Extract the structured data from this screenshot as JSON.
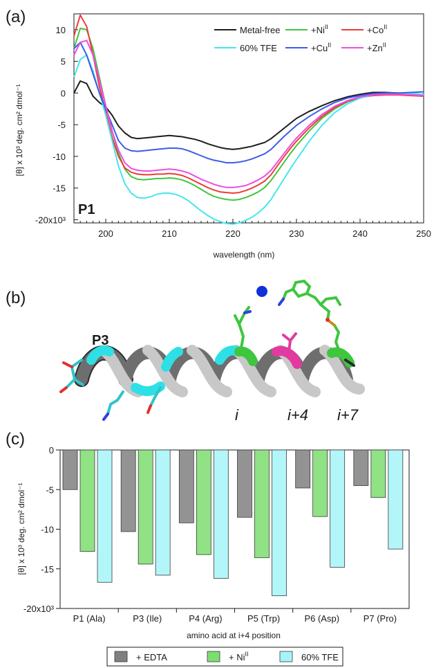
{
  "panels": {
    "a": "(a)",
    "b": "(b)",
    "c": "(c)"
  },
  "chart_data": [
    {
      "type": "line",
      "title": "",
      "panel_label": "P1",
      "xlabel": "wavelength (nm)",
      "ylabel": "[θ] x 10³ deg. cm² dmol⁻¹",
      "xlim": [
        195,
        250
      ],
      "ylim": [
        -20.5,
        12.5
      ],
      "x_ticks": [
        "200",
        "210",
        "220",
        "230",
        "240",
        "250"
      ],
      "y_ticks": [
        "10",
        "5",
        "0",
        "-5",
        "-10",
        "-15",
        "-20x10³"
      ],
      "legend_position": "top-right",
      "series": [
        {
          "name": "Metal-free",
          "color": "#1e1e1e",
          "x": [
            195,
            196,
            197,
            198,
            199,
            200,
            201,
            202,
            203,
            204,
            205,
            206,
            207,
            208,
            209,
            210,
            211,
            212,
            213,
            214,
            215,
            216,
            217,
            218,
            219,
            220,
            221,
            222,
            223,
            224,
            225,
            226,
            227,
            228,
            229,
            230,
            232,
            234,
            236,
            238,
            240,
            242,
            244,
            246,
            248,
            250
          ],
          "y": [
            0.0,
            1.9,
            1.5,
            -0.5,
            -1.5,
            -2.2,
            -3.5,
            -5.2,
            -6.3,
            -7.0,
            -7.2,
            -7.1,
            -7.0,
            -6.9,
            -6.8,
            -6.7,
            -6.8,
            -6.9,
            -7.1,
            -7.3,
            -7.6,
            -8.0,
            -8.3,
            -8.6,
            -8.8,
            -8.9,
            -8.8,
            -8.6,
            -8.4,
            -8.1,
            -7.8,
            -7.2,
            -6.4,
            -5.6,
            -4.8,
            -4.0,
            -2.9,
            -2.0,
            -1.2,
            -0.6,
            -0.2,
            0.1,
            0.1,
            0.0,
            -0.1,
            -0.2
          ]
        },
        {
          "name": "+Ni",
          "sup": "II",
          "color": "#3ec63e",
          "x": [
            195,
            196,
            197,
            198,
            199,
            200,
            201,
            202,
            203,
            204,
            205,
            206,
            207,
            208,
            209,
            210,
            211,
            212,
            213,
            214,
            215,
            216,
            217,
            218,
            219,
            220,
            221,
            222,
            223,
            224,
            225,
            226,
            227,
            228,
            229,
            230,
            232,
            234,
            236,
            238,
            240,
            242,
            244,
            246,
            248,
            250
          ],
          "y": [
            7.0,
            10.2,
            10.0,
            7.0,
            2.5,
            -2.0,
            -6.0,
            -9.5,
            -12.0,
            -13.2,
            -13.6,
            -13.7,
            -13.6,
            -13.5,
            -13.5,
            -13.4,
            -13.5,
            -13.7,
            -14.1,
            -14.6,
            -15.2,
            -15.8,
            -16.3,
            -16.6,
            -16.8,
            -16.9,
            -16.8,
            -16.5,
            -16.1,
            -15.6,
            -14.9,
            -13.8,
            -12.4,
            -11.0,
            -9.6,
            -8.3,
            -6.0,
            -4.0,
            -2.5,
            -1.4,
            -0.7,
            -0.3,
            -0.2,
            -0.2,
            -0.3,
            -0.3
          ]
        },
        {
          "name": "+Co",
          "sup": "II",
          "color": "#f03a3a",
          "x": [
            195,
            196,
            197,
            198,
            199,
            200,
            201,
            202,
            203,
            204,
            205,
            206,
            207,
            208,
            209,
            210,
            211,
            212,
            213,
            214,
            215,
            216,
            217,
            218,
            219,
            220,
            221,
            222,
            223,
            224,
            225,
            226,
            227,
            228,
            229,
            230,
            232,
            234,
            236,
            238,
            240,
            242,
            244,
            246,
            248,
            250
          ],
          "y": [
            9.0,
            12.3,
            10.5,
            6.0,
            1.0,
            -3.0,
            -7.0,
            -10.0,
            -11.8,
            -12.5,
            -12.8,
            -12.9,
            -12.9,
            -12.8,
            -12.8,
            -12.7,
            -12.8,
            -13.0,
            -13.4,
            -13.9,
            -14.4,
            -14.9,
            -15.3,
            -15.6,
            -15.7,
            -15.8,
            -15.7,
            -15.4,
            -15.0,
            -14.5,
            -13.9,
            -12.9,
            -11.5,
            -10.1,
            -8.8,
            -7.6,
            -5.5,
            -3.7,
            -2.3,
            -1.3,
            -0.7,
            -0.4,
            -0.3,
            -0.3,
            -0.4,
            -0.5
          ]
        },
        {
          "name": "60% TFE",
          "color": "#44e6ee",
          "x": [
            195,
            196,
            197,
            198,
            199,
            200,
            201,
            202,
            203,
            204,
            205,
            206,
            207,
            208,
            209,
            210,
            211,
            212,
            213,
            214,
            215,
            216,
            217,
            218,
            219,
            220,
            221,
            222,
            223,
            224,
            225,
            226,
            227,
            228,
            229,
            230,
            232,
            234,
            236,
            238,
            240,
            242,
            244,
            246,
            248,
            250
          ],
          "y": [
            2.5,
            5.3,
            6.0,
            3.5,
            0.0,
            -3.5,
            -7.5,
            -11.5,
            -14.3,
            -15.8,
            -16.5,
            -16.6,
            -16.4,
            -16.0,
            -15.8,
            -15.8,
            -16.0,
            -16.4,
            -17.0,
            -17.8,
            -18.6,
            -19.3,
            -19.9,
            -20.3,
            -20.6,
            -20.7,
            -20.5,
            -20.1,
            -19.6,
            -18.9,
            -18.0,
            -16.8,
            -15.2,
            -13.6,
            -12.0,
            -10.5,
            -7.6,
            -5.1,
            -3.1,
            -1.7,
            -0.8,
            -0.3,
            0.0,
            0.0,
            -0.1,
            -0.2
          ]
        },
        {
          "name": "+Cu",
          "sup": "II",
          "color": "#3c5ce8",
          "x": [
            195,
            196,
            197,
            198,
            199,
            200,
            201,
            202,
            203,
            204,
            205,
            206,
            207,
            208,
            209,
            210,
            211,
            212,
            213,
            214,
            215,
            216,
            217,
            218,
            219,
            220,
            221,
            222,
            223,
            224,
            225,
            226,
            227,
            228,
            229,
            230,
            232,
            234,
            236,
            238,
            240,
            242,
            244,
            246,
            248,
            250
          ],
          "y": [
            7.0,
            8.0,
            6.0,
            3.0,
            0.0,
            -2.5,
            -5.0,
            -7.5,
            -8.7,
            -9.1,
            -9.2,
            -9.1,
            -9.0,
            -8.9,
            -8.8,
            -8.7,
            -8.7,
            -8.8,
            -9.1,
            -9.5,
            -9.9,
            -10.3,
            -10.6,
            -10.8,
            -11.0,
            -11.0,
            -10.9,
            -10.7,
            -10.4,
            -10.0,
            -9.6,
            -8.9,
            -7.9,
            -6.9,
            -6.0,
            -5.1,
            -3.7,
            -2.5,
            -1.5,
            -0.8,
            -0.4,
            -0.1,
            0.0,
            0.0,
            0.1,
            0.2
          ]
        },
        {
          "name": "+Zn",
          "sup": "II",
          "color": "#ee4ce0",
          "x": [
            195,
            196,
            197,
            198,
            199,
            200,
            201,
            202,
            203,
            204,
            205,
            206,
            207,
            208,
            209,
            210,
            211,
            212,
            213,
            214,
            215,
            216,
            217,
            218,
            219,
            220,
            221,
            222,
            223,
            224,
            225,
            226,
            227,
            228,
            229,
            230,
            232,
            234,
            236,
            238,
            240,
            242,
            244,
            246,
            248,
            250
          ],
          "y": [
            6.0,
            8.0,
            8.3,
            6.0,
            2.0,
            -2.0,
            -6.0,
            -9.0,
            -11.0,
            -11.9,
            -12.2,
            -12.3,
            -12.3,
            -12.2,
            -12.1,
            -12.0,
            -12.1,
            -12.3,
            -12.6,
            -13.1,
            -13.6,
            -14.0,
            -14.4,
            -14.7,
            -14.9,
            -14.9,
            -14.8,
            -14.6,
            -14.2,
            -13.7,
            -13.1,
            -12.2,
            -10.9,
            -9.6,
            -8.3,
            -7.1,
            -5.1,
            -3.4,
            -2.1,
            -1.2,
            -0.6,
            -0.3,
            -0.2,
            -0.2,
            -0.3,
            -0.4
          ]
        }
      ]
    },
    {
      "type": "bar",
      "title": "",
      "xlabel": "amino acid at i+4 position",
      "ylabel": "[θ] x 10³ deg. cm² dmol⁻¹",
      "ylim": [
        -20,
        0
      ],
      "y_ticks": [
        "0",
        "-5",
        "-10",
        "-15",
        "-20x10³"
      ],
      "categories": [
        "P1 (Ala)",
        "P3 (Ile)",
        "P4 (Arg)",
        "P5 (Trp)",
        "P6 (Asp)",
        "P7 (Pro)"
      ],
      "legend_position": "bottom",
      "series": [
        {
          "name": "+ EDTA",
          "color": "#808080",
          "values": [
            -5.0,
            -10.3,
            -9.2,
            -8.5,
            -4.8,
            -4.5
          ]
        },
        {
          "name": "+ Ni",
          "sup": "II",
          "color": "#7ddd70",
          "values": [
            -12.8,
            -14.4,
            -13.2,
            -13.6,
            -8.4,
            -6.0
          ]
        },
        {
          "name": "60% TFE",
          "color": "#a6f4f8",
          "values": [
            -16.7,
            -15.8,
            -16.2,
            -18.4,
            -14.8,
            -12.5
          ]
        }
      ]
    }
  ],
  "helix": {
    "label": "P3",
    "positions": [
      "i",
      "i+4",
      "i+7"
    ]
  }
}
